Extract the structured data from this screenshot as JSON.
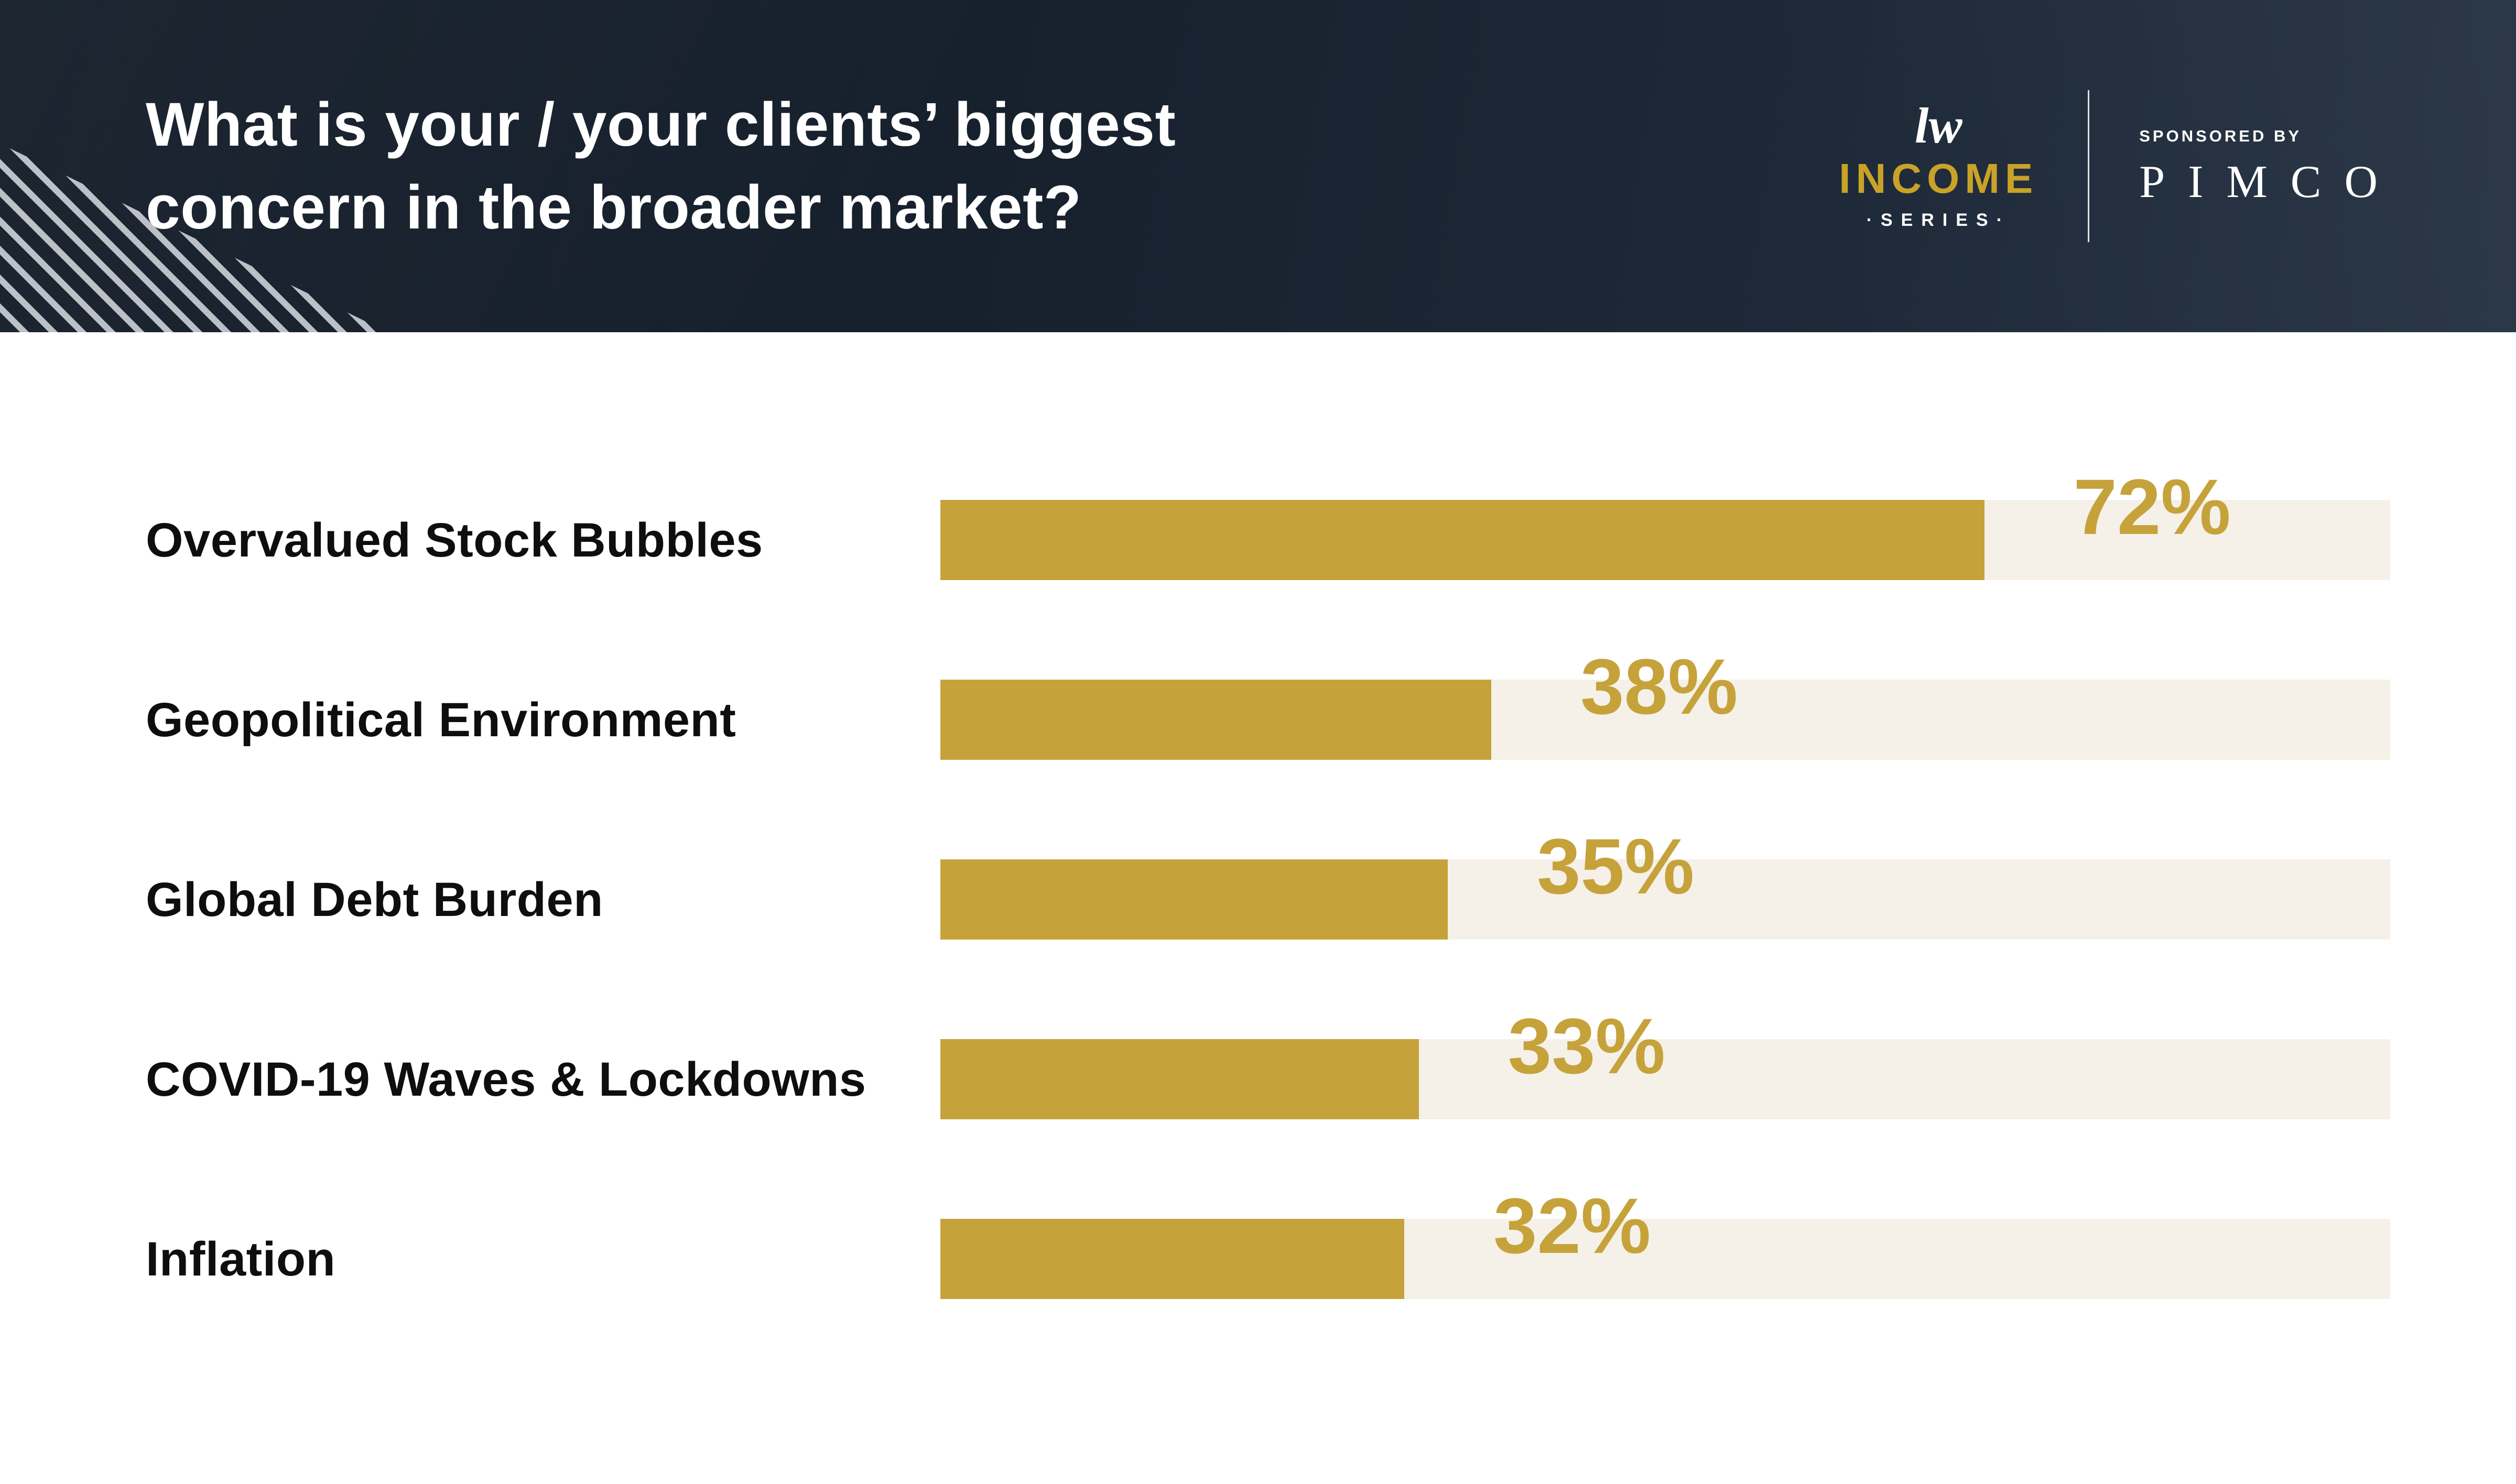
{
  "header": {
    "title_line1": "What is your / your clients’ biggest",
    "title_line2": "concern in the broader market?",
    "income_logo": {
      "mark": "lw",
      "brand": "INCOME",
      "sub": "·SERIES·"
    },
    "sponsor": {
      "label": "SPONSORED BY",
      "name": "PIMCO"
    }
  },
  "colors": {
    "header_bg": "#18222f",
    "gold": "#C6A23B",
    "track": "#F5F1E8",
    "label_text": "#0e0e10",
    "title_text": "#ffffff"
  },
  "chart_data": {
    "type": "bar",
    "orientation": "horizontal",
    "title": "What is your / your clients’ biggest concern in the broader market?",
    "categories": [
      "Overvalued Stock Bubbles",
      "Geopolitical Environment",
      "Global Debt Burden",
      "COVID-19 Waves & Lockdowns",
      "Inflation"
    ],
    "values": [
      72,
      38,
      35,
      33,
      32
    ],
    "value_labels": [
      "72%",
      "38%",
      "35%",
      "33%",
      "32%"
    ],
    "xlabel": "",
    "ylabel": "",
    "xlim": [
      0,
      100
    ],
    "grid": false,
    "legend": false,
    "bar_color": "#C6A23B",
    "track_color": "#F5F1E8"
  }
}
